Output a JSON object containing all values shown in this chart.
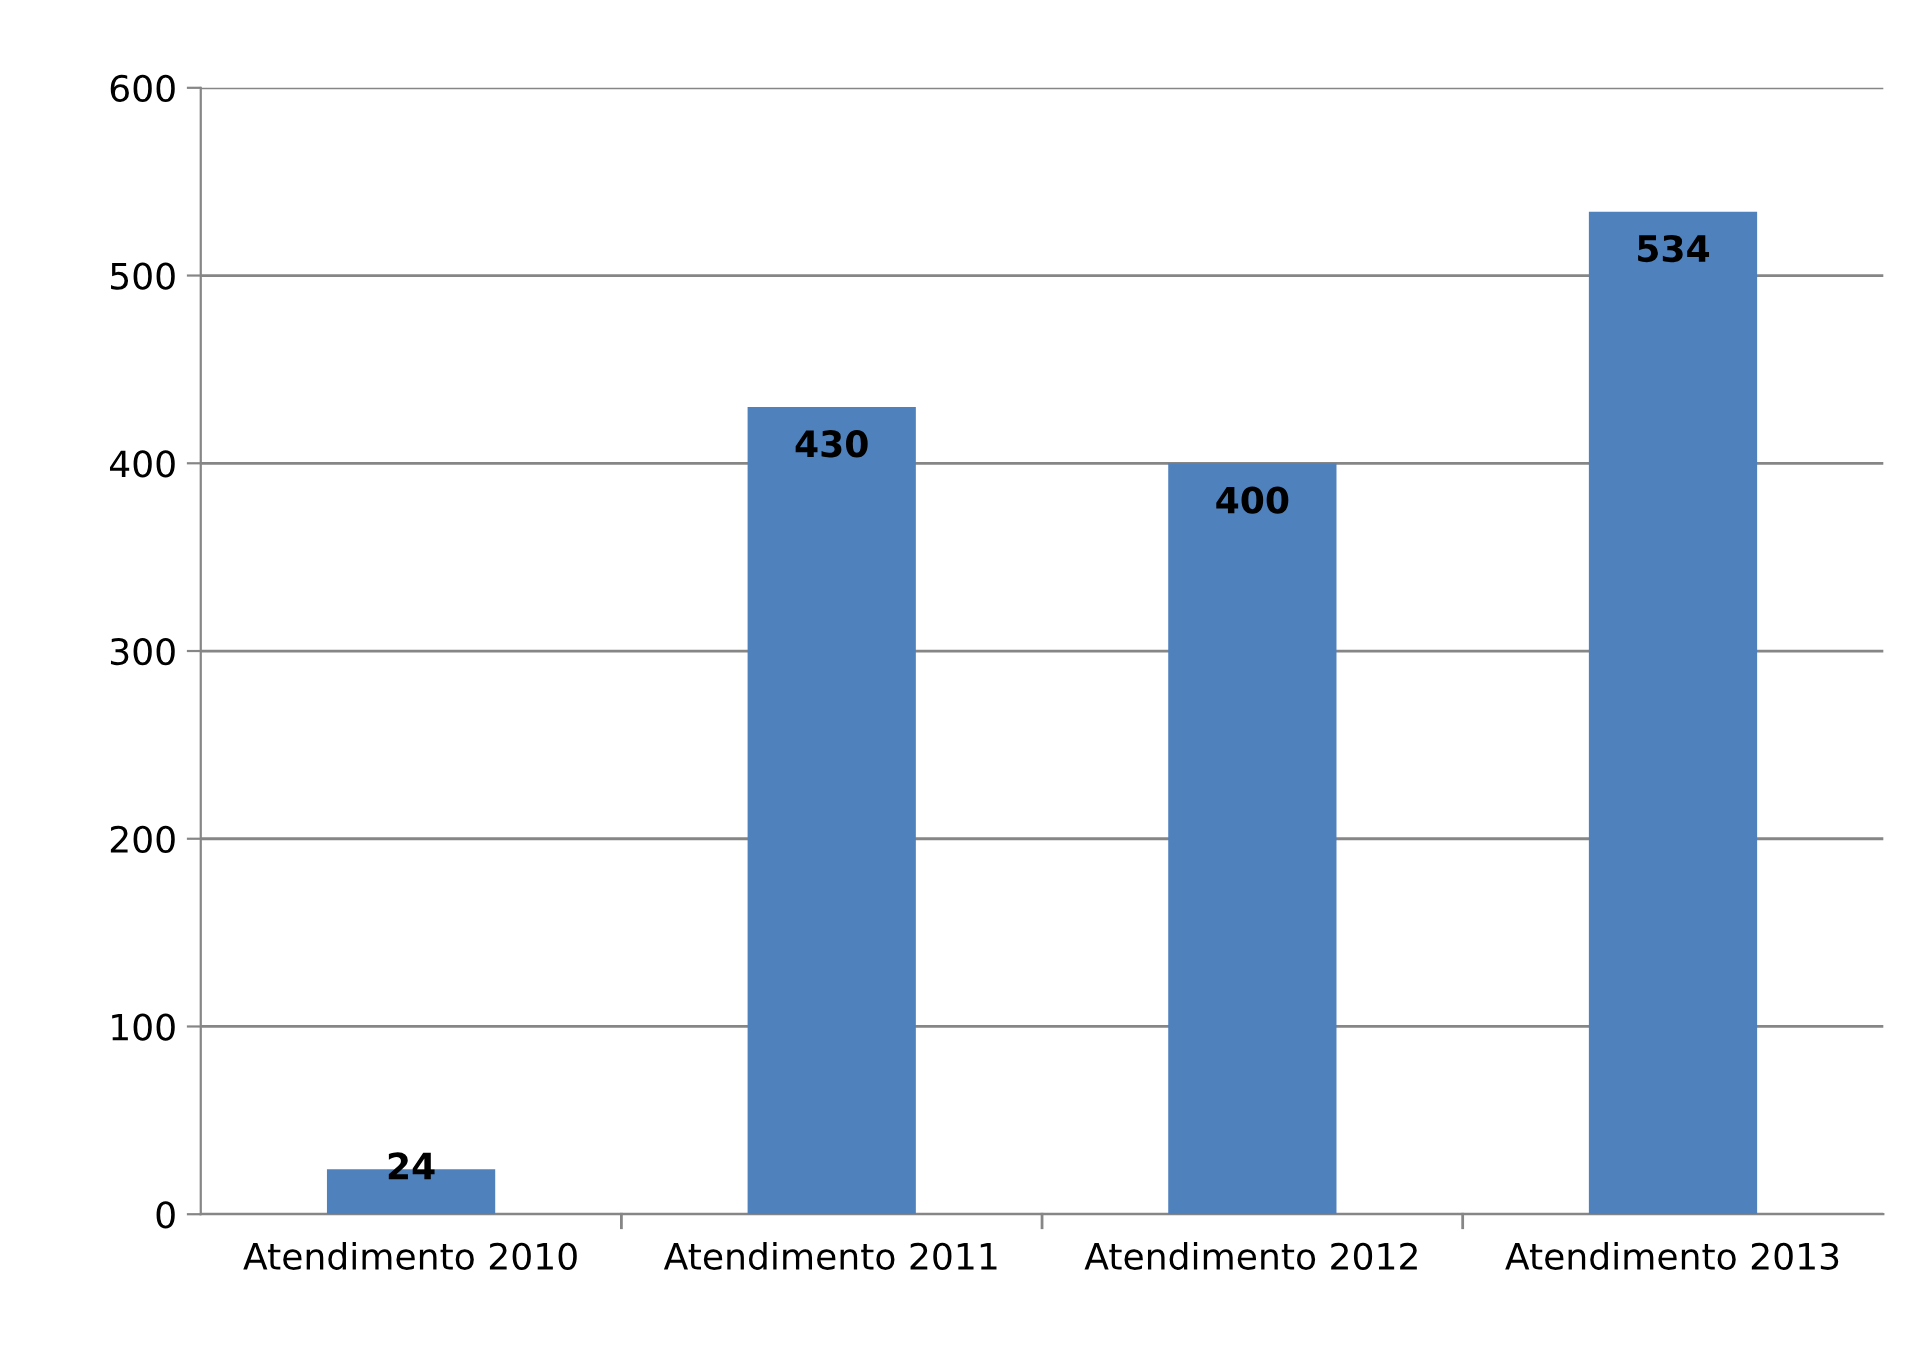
{
  "chart_data": {
    "type": "bar",
    "categories": [
      "Atendimento 2010",
      "Atendimento 2011",
      "Atendimento 2012",
      "Atendimento 2013"
    ],
    "values": [
      24,
      430,
      400,
      534
    ],
    "color": "#4f81bd",
    "ylim": [
      0,
      600
    ],
    "yticks": [
      0,
      100,
      200,
      300,
      400,
      500,
      600
    ],
    "grid": "y",
    "data_labels": true
  }
}
